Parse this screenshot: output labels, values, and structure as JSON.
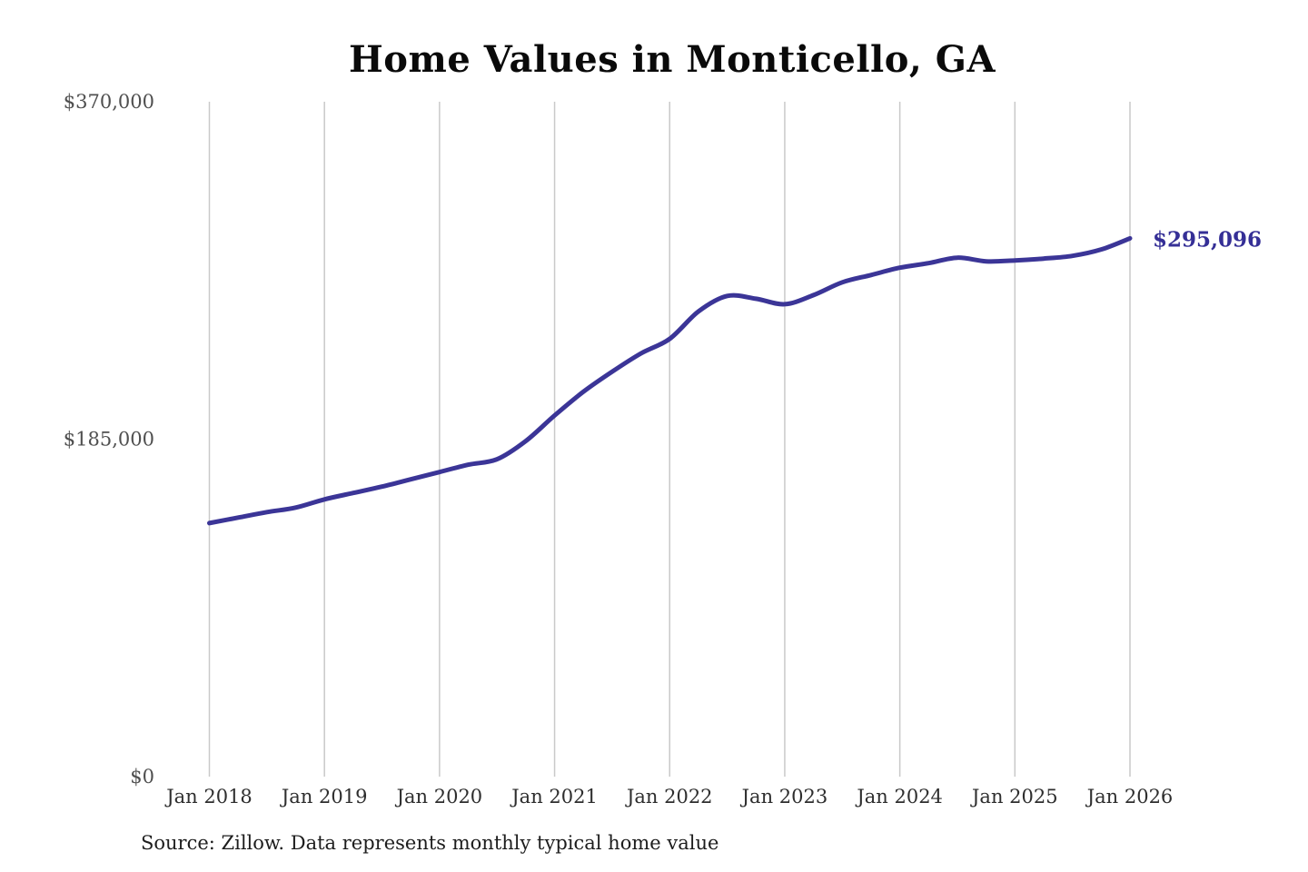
{
  "page": {
    "background_color": "#ffffff"
  },
  "chart": {
    "title": "Home Values in Monticello, GA",
    "source_note": "Source: Zillow. Data represents monthly typical home value",
    "line_color": "#3b3597",
    "grid_color": "#c9c9c9",
    "y_label_color": "#4f4f4f",
    "x_label_color": "#2e2e2e",
    "end_label_color": "#352f96"
  },
  "chart_data": {
    "type": "line",
    "title": "Home Values in Monticello, GA",
    "series_name": "Monthly typical home value",
    "x": [
      "2018-01",
      "2018-04",
      "2018-07",
      "2018-10",
      "2019-01",
      "2019-04",
      "2019-07",
      "2019-10",
      "2020-01",
      "2020-04",
      "2020-07",
      "2020-10",
      "2021-01",
      "2021-04",
      "2021-07",
      "2021-10",
      "2022-01",
      "2022-04",
      "2022-07",
      "2022-10",
      "2023-01",
      "2023-04",
      "2023-07",
      "2023-10",
      "2024-01",
      "2024-04",
      "2024-07",
      "2024-10",
      "2025-01",
      "2025-04",
      "2025-07",
      "2025-10",
      "2026-01"
    ],
    "values": [
      139000,
      142000,
      145000,
      147500,
      152000,
      155500,
      159000,
      163000,
      167000,
      171000,
      174000,
      184000,
      198000,
      211000,
      222000,
      232000,
      240000,
      255000,
      263500,
      262000,
      259000,
      264000,
      271000,
      275000,
      279000,
      281500,
      284500,
      282500,
      283000,
      284000,
      285500,
      289000,
      295096
    ],
    "x_tick_labels": [
      "Jan 2018",
      "Jan 2019",
      "Jan 2020",
      "Jan 2021",
      "Jan 2022",
      "Jan 2023",
      "Jan 2024",
      "Jan 2025",
      "Jan 2026"
    ],
    "y_ticks": [
      0,
      185000,
      370000
    ],
    "y_tick_labels": [
      "$0",
      "$185,000",
      "$370,000"
    ],
    "ylim": [
      0,
      370000
    ],
    "xlabel": "",
    "ylabel": "",
    "grid": "vertical-only",
    "legend": "none",
    "final_value": 295096,
    "final_value_label": "$295,096"
  }
}
